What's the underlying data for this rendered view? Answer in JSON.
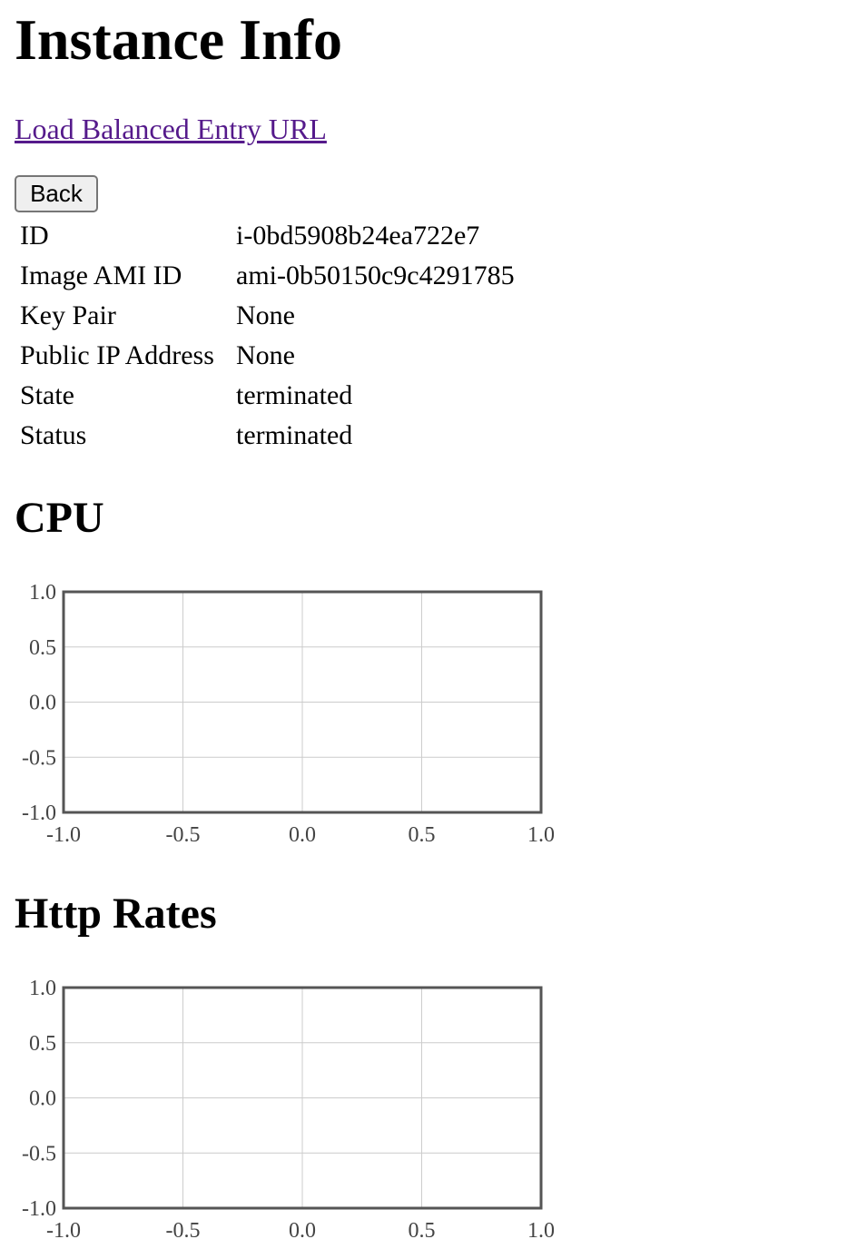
{
  "page": {
    "title": "Instance Info",
    "entry_link": "Load Balanced Entry URL",
    "back_label": "Back"
  },
  "instance": {
    "rows": [
      {
        "label": "ID",
        "value": "i-0bd5908b24ea722e7"
      },
      {
        "label": "Image AMI ID",
        "value": "ami-0b50150c9c4291785"
      },
      {
        "label": "Key Pair",
        "value": "None"
      },
      {
        "label": "Public IP Address",
        "value": "None"
      },
      {
        "label": "State",
        "value": "terminated"
      },
      {
        "label": "Status",
        "value": "terminated"
      }
    ]
  },
  "sections": {
    "cpu_heading": "CPU",
    "http_heading": "Http Rates"
  },
  "chart_data": [
    {
      "type": "line",
      "title": "",
      "xlabel": "",
      "ylabel": "",
      "xlim": [
        -1.0,
        1.0
      ],
      "ylim": [
        -1.0,
        1.0
      ],
      "xticks": [
        "-1.0",
        "-0.5",
        "0.0",
        "0.5",
        "1.0"
      ],
      "yticks": [
        "1.0",
        "0.5",
        "0.0",
        "-0.5",
        "-1.0"
      ],
      "grid": true,
      "series": []
    },
    {
      "type": "line",
      "title": "",
      "xlabel": "",
      "ylabel": "",
      "xlim": [
        -1.0,
        1.0
      ],
      "ylim": [
        -1.0,
        1.0
      ],
      "xticks": [
        "-1.0",
        "-0.5",
        "0.0",
        "0.5",
        "1.0"
      ],
      "yticks": [
        "1.0",
        "0.5",
        "0.0",
        "-0.5",
        "-1.0"
      ],
      "grid": true,
      "series": []
    }
  ]
}
